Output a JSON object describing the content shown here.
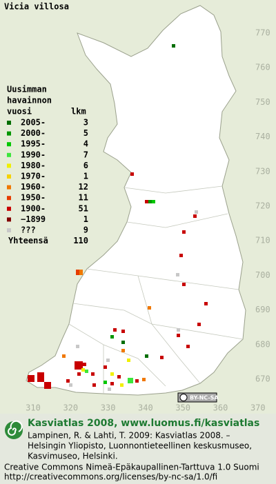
{
  "title": "Vicia villosa",
  "legend": {
    "heading": [
      "Uusimman",
      "havainnon",
      "vuosi"
    ],
    "count_heading": "lkm",
    "rows": [
      {
        "label": "2005-",
        "count": 3,
        "color": "#006e00"
      },
      {
        "label": "2000-",
        "count": 5,
        "color": "#009600"
      },
      {
        "label": "1995-",
        "count": 4,
        "color": "#00c800"
      },
      {
        "label": "1990-",
        "count": 7,
        "color": "#3ce63c"
      },
      {
        "label": "1980-",
        "count": 6,
        "color": "#f0f000"
      },
      {
        "label": "1970-",
        "count": 1,
        "color": "#f5d200"
      },
      {
        "label": "1960-",
        "count": 12,
        "color": "#f07800"
      },
      {
        "label": "1950-",
        "count": 11,
        "color": "#e63c00"
      },
      {
        "label": "1900-",
        "count": 51,
        "color": "#c80000"
      },
      {
        "label": "−1899",
        "count": 1,
        "color": "#820000"
      },
      {
        "label": "???",
        "count": 9,
        "color": "#c8c8c8"
      }
    ],
    "total_label": "Yhteensä",
    "total": 110
  },
  "map": {
    "y_labels": [
      "770",
      "760",
      "750",
      "740",
      "730",
      "720",
      "710",
      "700",
      "690",
      "680",
      "670"
    ],
    "x_labels": [
      "310",
      "320",
      "330",
      "340",
      "350",
      "360",
      "370"
    ],
    "license_badge": "BY-NC-SA"
  },
  "footer": {
    "brand": "Kasviatlas 2008, www.luomus.fi/kasviatlas",
    "citation": [
      "Lampinen, R. & Lahti, T. 2009: Kasviatlas 2008. –",
      "Helsingin Yliopisto, Luonnontieteellinen keskusmuseo,",
      "Kasvimuseo, Helsinki."
    ],
    "license": [
      "Creative Commons Nimeä-Epäkaupallinen-Tarttuva 1.0 Suomi",
      "http://creativecommons.org/licenses/by-nc-sa/1.0/fi"
    ]
  }
}
